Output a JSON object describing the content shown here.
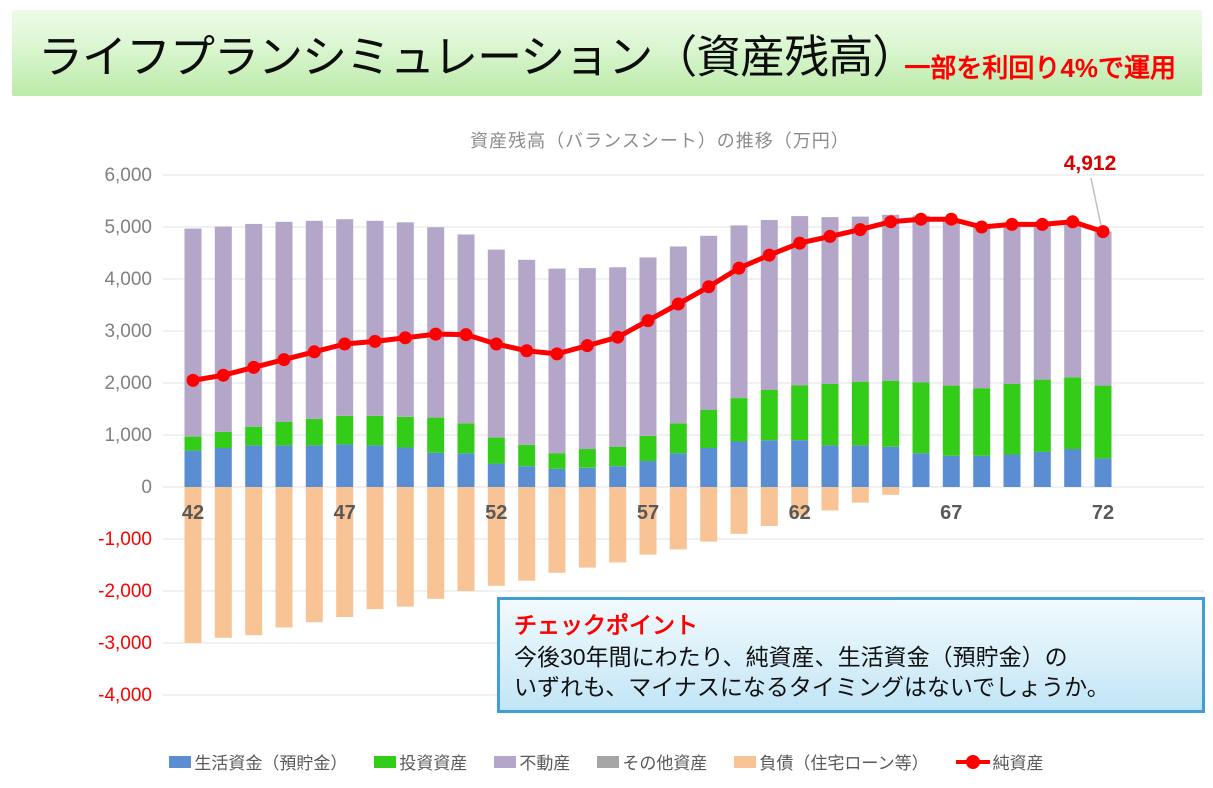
{
  "header": {
    "title": "ライフプランシミュレーション（資産残高）",
    "subtitle": "一部を利回り4%で運用",
    "subtitle_color": "#FF0000",
    "banner_color_top": "#EDFBE8",
    "banner_color_bottom": "#BBEBA9"
  },
  "chart_data": {
    "type": "combo-stacked-bar-line",
    "title": "資産残高（バランスシート）の推移（万円）",
    "x": [
      42,
      43,
      44,
      45,
      46,
      47,
      48,
      49,
      50,
      51,
      52,
      53,
      54,
      55,
      56,
      57,
      58,
      59,
      60,
      61,
      62,
      63,
      64,
      65,
      66,
      67,
      68,
      69,
      70,
      71,
      72
    ],
    "x_ticks": [
      42,
      47,
      52,
      57,
      62,
      67,
      72
    ],
    "ylim": [
      -4000,
      6000
    ],
    "y_ticks": [
      6000,
      5000,
      4000,
      3000,
      2000,
      1000,
      0,
      -1000,
      -2000,
      -3000,
      -4000
    ],
    "grid": true,
    "legend_position": "bottom",
    "negative_tick_color": "#FF0000",
    "positive_tick_color": "#808080",
    "series": [
      {
        "name": "生活資金（預貯金）",
        "type": "bar",
        "color": "#5B8DD2",
        "values": [
          700,
          750,
          800,
          800,
          800,
          820,
          800,
          760,
          660,
          650,
          450,
          400,
          350,
          370,
          400,
          500,
          650,
          750,
          875,
          900,
          900,
          800,
          800,
          775,
          650,
          600,
          600,
          625,
          675,
          730,
          550
        ]
      },
      {
        "name": "投資資産",
        "type": "bar",
        "color": "#33CC19",
        "values": [
          270,
          310,
          360,
          450,
          510,
          550,
          570,
          590,
          675,
          575,
          500,
          410,
          300,
          360,
          375,
          485,
          575,
          730,
          835,
          965,
          1055,
          1180,
          1220,
          1270,
          1360,
          1350,
          1300,
          1355,
          1390,
          1380,
          1400
        ]
      },
      {
        "name": "不動産",
        "type": "bar",
        "color": "#B3A6C9",
        "values": [
          4000,
          3950,
          3900,
          3850,
          3810,
          3780,
          3750,
          3740,
          3660,
          3630,
          3615,
          3560,
          3550,
          3480,
          3450,
          3430,
          3400,
          3350,
          3320,
          3270,
          3255,
          3210,
          3180,
          3190,
          3210,
          3200,
          3100,
          3070,
          2990,
          2990,
          2960
        ]
      },
      {
        "name": "その他資産",
        "type": "bar",
        "color": "#A6A6A6",
        "values": [
          0,
          0,
          0,
          0,
          0,
          0,
          0,
          0,
          0,
          0,
          0,
          0,
          0,
          0,
          0,
          0,
          0,
          0,
          0,
          0,
          0,
          0,
          0,
          0,
          0,
          0,
          0,
          0,
          0,
          0,
          0
        ]
      },
      {
        "name": "負債（住宅ローン等）",
        "type": "bar",
        "color": "#F8C496",
        "values": [
          -3000,
          -2900,
          -2850,
          -2700,
          -2600,
          -2500,
          -2350,
          -2300,
          -2150,
          -2000,
          -1900,
          -1800,
          -1650,
          -1550,
          -1450,
          -1300,
          -1200,
          -1050,
          -900,
          -750,
          -550,
          -450,
          -300,
          -150,
          0,
          0,
          0,
          0,
          0,
          0,
          0
        ]
      },
      {
        "name": "純資産",
        "type": "line",
        "color": "#FF0000",
        "values": [
          2050,
          2150,
          2300,
          2450,
          2600,
          2750,
          2800,
          2870,
          2940,
          2930,
          2750,
          2620,
          2560,
          2720,
          2880,
          3200,
          3520,
          3850,
          4210,
          4460,
          4690,
          4820,
          4950,
          5100,
          5150,
          5150,
          5000,
          5050,
          5050,
          5100,
          4912
        ]
      }
    ],
    "annotation": {
      "label": "4,912",
      "series": "純資産",
      "x": 72,
      "value": 4912,
      "color": "#D90000"
    }
  },
  "checkpoint": {
    "title": "チェックポイント",
    "line1": "今後30年間にわたり、純資産、生活資金（預貯金）の",
    "line2": "いずれも、マイナスになるタイミングはないでしょうか。"
  }
}
